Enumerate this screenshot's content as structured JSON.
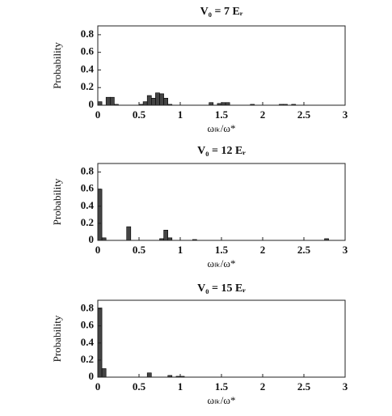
{
  "chart_data": [
    {
      "type": "histogram",
      "title": "V₀ = 7 Eᵣ",
      "x_label": "ωₗₖ/ω*",
      "y_label": "Probability",
      "color": "#444444",
      "bins": [
        0,
        0.05,
        0.1,
        0.15,
        0.2,
        0.25,
        0.3,
        0.35,
        0.4,
        0.45,
        0.5,
        0.55,
        0.6,
        0.65,
        0.7,
        0.75,
        0.8,
        0.85,
        0.9,
        0.95,
        1,
        1.05,
        1.1,
        1.15,
        1.2,
        1.25,
        1.3,
        1.35,
        1.4,
        1.45,
        1.5,
        1.55,
        1.6,
        1.65,
        1.7,
        1.75,
        1.8,
        1.85,
        1.9,
        1.95,
        2,
        2.05,
        2.1,
        2.15,
        2.2,
        2.25,
        2.3,
        2.35,
        2.4,
        2.45,
        2.5,
        2.55,
        2.6,
        2.65,
        2.7,
        2.75,
        2.8,
        2.85,
        2.9,
        2.95,
        3
      ],
      "values": [
        0.04,
        0,
        0.09,
        0.09,
        0.01,
        0,
        0,
        0,
        0,
        0,
        0.01,
        0.04,
        0.11,
        0.08,
        0.14,
        0.13,
        0.08,
        0.01,
        0,
        0,
        0,
        0,
        0,
        0,
        0,
        0,
        0,
        0.03,
        0,
        0.02,
        0.03,
        0.03,
        0,
        0,
        0,
        0,
        0,
        0.01,
        0,
        0,
        0,
        0,
        0,
        0,
        0.01,
        0.01,
        0,
        0.01,
        0,
        0,
        0,
        0,
        0,
        0,
        0,
        0,
        0,
        0,
        0,
        0
      ],
      "xlim": [
        0,
        3
      ],
      "xticks": [
        0,
        0.5,
        1,
        1.5,
        2,
        2.5,
        3
      ],
      "ylim": [
        0,
        0.9
      ],
      "yticks": [
        0,
        0.2,
        0.4,
        0.6,
        0.8
      ]
    },
    {
      "type": "histogram",
      "title": "V₀ = 12 Eᵣ",
      "x_label": "ωₗₖ/ω*",
      "y_label": "Probability",
      "color": "#444444",
      "bins": [
        0,
        0.05,
        0.1,
        0.15,
        0.2,
        0.25,
        0.3,
        0.35,
        0.4,
        0.45,
        0.5,
        0.55,
        0.6,
        0.65,
        0.7,
        0.75,
        0.8,
        0.85,
        0.9,
        0.95,
        1,
        1.05,
        1.1,
        1.15,
        1.2,
        1.25,
        1.3,
        1.35,
        1.4,
        1.45,
        1.5,
        1.55,
        1.6,
        1.65,
        1.7,
        1.75,
        1.8,
        1.85,
        1.9,
        1.95,
        2,
        2.05,
        2.1,
        2.15,
        2.2,
        2.25,
        2.3,
        2.35,
        2.4,
        2.45,
        2.5,
        2.55,
        2.6,
        2.65,
        2.7,
        2.75,
        2.8,
        2.85,
        2.9,
        2.95,
        3
      ],
      "values": [
        0.6,
        0.03,
        0,
        0,
        0,
        0,
        0,
        0.16,
        0,
        0,
        0,
        0,
        0,
        0,
        0,
        0.02,
        0.12,
        0.03,
        0,
        0,
        0,
        0,
        0,
        0.01,
        0,
        0,
        0,
        0,
        0,
        0,
        0,
        0,
        0,
        0,
        0,
        0,
        0,
        0,
        0,
        0,
        0,
        0,
        0,
        0,
        0,
        0,
        0,
        0,
        0,
        0,
        0,
        0,
        0,
        0,
        0,
        0.02,
        0,
        0,
        0,
        0
      ],
      "xlim": [
        0,
        3
      ],
      "xticks": [
        0,
        0.5,
        1,
        1.5,
        2,
        2.5,
        3
      ],
      "ylim": [
        0,
        0.9
      ],
      "yticks": [
        0,
        0.2,
        0.4,
        0.6,
        0.8
      ]
    },
    {
      "type": "histogram",
      "title": "V₀ = 15 Eᵣ",
      "x_label": "ωₗₖ/ω*",
      "y_label": "Probability",
      "color": "#444444",
      "bins": [
        0,
        0.05,
        0.1,
        0.15,
        0.2,
        0.25,
        0.3,
        0.35,
        0.4,
        0.45,
        0.5,
        0.55,
        0.6,
        0.65,
        0.7,
        0.75,
        0.8,
        0.85,
        0.9,
        0.95,
        1,
        1.05,
        1.1,
        1.15,
        1.2,
        1.25,
        1.3,
        1.35,
        1.4,
        1.45,
        1.5,
        1.55,
        1.6,
        1.65,
        1.7,
        1.75,
        1.8,
        1.85,
        1.9,
        1.95,
        2,
        2.05,
        2.1,
        2.15,
        2.2,
        2.25,
        2.3,
        2.35,
        2.4,
        2.45,
        2.5,
        2.55,
        2.6,
        2.65,
        2.7,
        2.75,
        2.8,
        2.85,
        2.9,
        2.95,
        3
      ],
      "values": [
        0.81,
        0.1,
        0,
        0,
        0,
        0,
        0,
        0,
        0,
        0,
        0,
        0,
        0.05,
        0,
        0,
        0,
        0,
        0.02,
        0,
        0.01,
        0.01,
        0,
        0,
        0,
        0,
        0,
        0,
        0,
        0,
        0,
        0,
        0,
        0,
        0,
        0,
        0,
        0,
        0,
        0,
        0,
        0,
        0,
        0,
        0,
        0,
        0,
        0,
        0,
        0,
        0,
        0,
        0,
        0,
        0,
        0,
        0,
        0,
        0,
        0,
        0
      ],
      "xlim": [
        0,
        3
      ],
      "xticks": [
        0,
        0.5,
        1,
        1.5,
        2,
        2.5,
        3
      ],
      "ylim": [
        0,
        0.9
      ],
      "yticks": [
        0,
        0.2,
        0.4,
        0.6,
        0.8
      ]
    }
  ]
}
